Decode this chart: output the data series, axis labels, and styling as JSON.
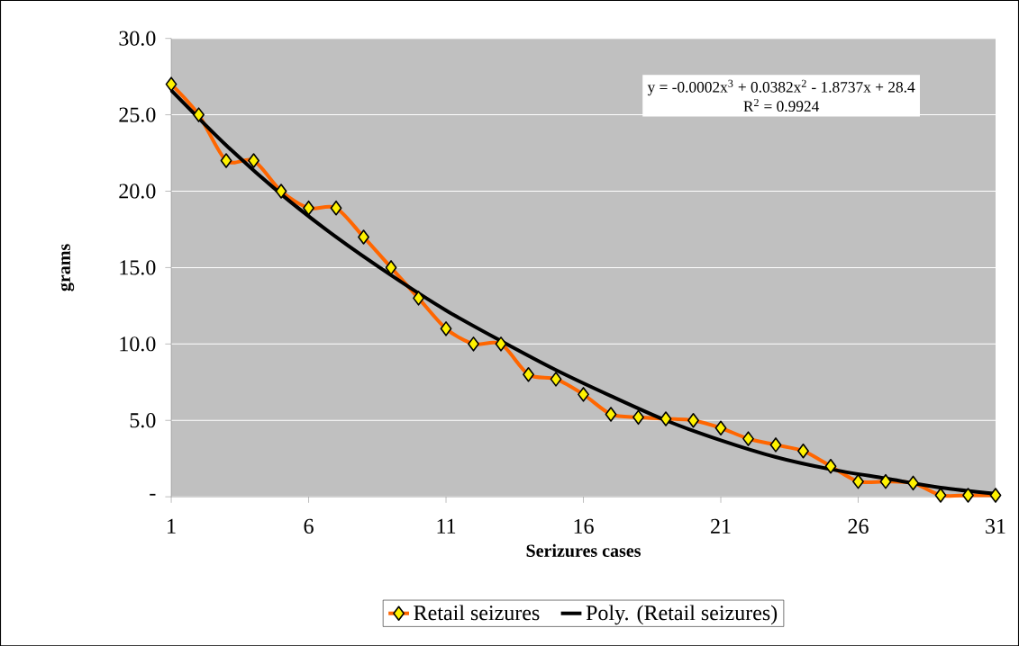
{
  "chart_data": {
    "type": "line",
    "xlabel": "Serizures cases",
    "ylabel": "grams",
    "x": [
      1,
      2,
      3,
      4,
      5,
      6,
      7,
      8,
      9,
      10,
      11,
      12,
      13,
      14,
      15,
      16,
      17,
      18,
      19,
      20,
      21,
      22,
      23,
      24,
      25,
      26,
      27,
      28,
      29,
      30,
      31
    ],
    "series": [
      {
        "name": "Retail seizures",
        "color": "#ff6600",
        "values": [
          27,
          25,
          22,
          22,
          20,
          18.9,
          18.9,
          17,
          15,
          13,
          11,
          10,
          10,
          8,
          7.7,
          6.7,
          5.4,
          5.2,
          5.1,
          5,
          4.5,
          3.8,
          3.4,
          3,
          2,
          1,
          1,
          0.9,
          0.1,
          0.1,
          0.1
        ]
      },
      {
        "name": "Poly. (Retail seizures)",
        "type": "line",
        "color": "#000000",
        "marker": "none",
        "x": [
          1,
          3,
          5,
          7,
          9,
          11,
          13,
          15,
          17,
          19,
          21,
          23,
          25,
          27,
          29,
          31
        ],
        "values": [
          26.6,
          23.0,
          19.8,
          17.0,
          14.5,
          12.2,
          10.2,
          8.3,
          6.6,
          5.0,
          3.7,
          2.6,
          1.8,
          1.2,
          0.6,
          0.2
        ]
      }
    ],
    "xlim": [
      1,
      31
    ],
    "xticks": [
      1,
      6,
      11,
      16,
      21,
      26,
      31
    ],
    "ylim": [
      0,
      30
    ],
    "yticks": [
      {
        "value": 0,
        "label": "-"
      },
      {
        "value": 5,
        "label": "5.0"
      },
      {
        "value": 10,
        "label": "10.0"
      },
      {
        "value": 15,
        "label": "15.0"
      },
      {
        "value": 20,
        "label": "20.0"
      },
      {
        "value": 25,
        "label": "25.0"
      },
      {
        "value": 30,
        "label": "30.0"
      }
    ],
    "annotations": [
      "y = -0.0002x$^{3}$ + 0.0382x$^{2}$ - 1.8737x + 28.4",
      "R$^{2}$ = 0.9924"
    ],
    "grid": "y",
    "legend": "bottom",
    "marker": "diamond",
    "line_style": "solid"
  }
}
